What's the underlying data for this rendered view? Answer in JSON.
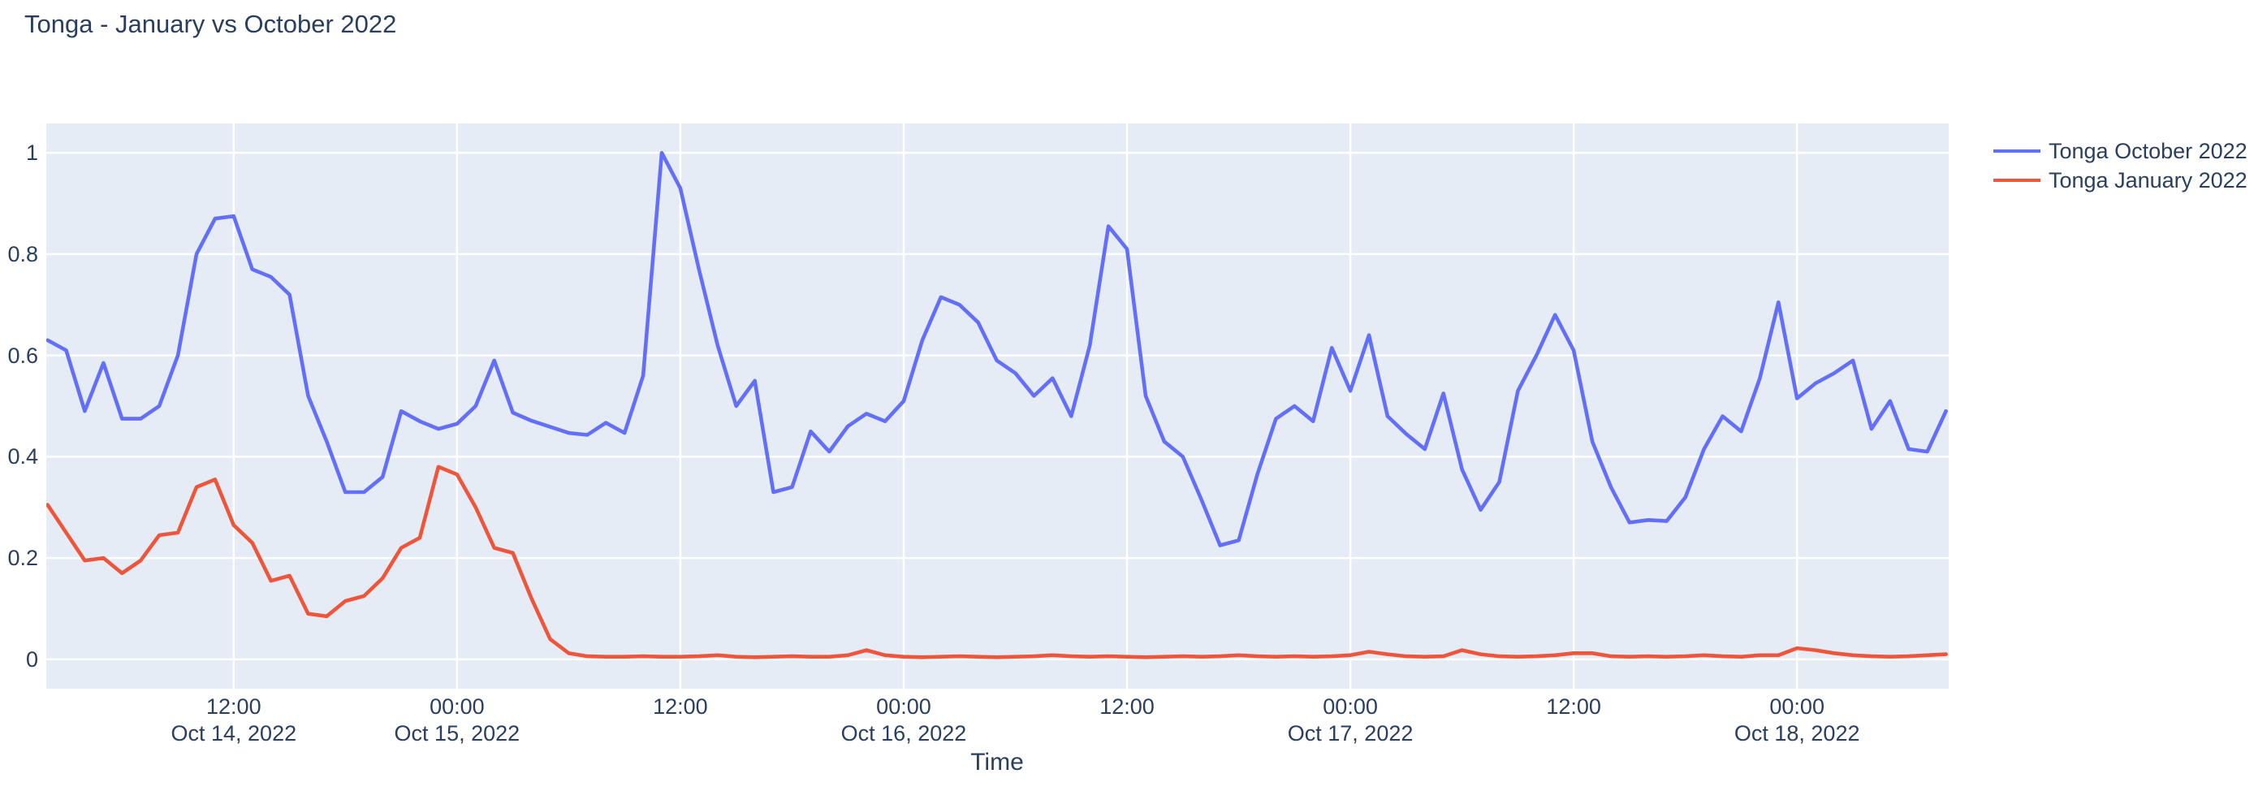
{
  "title": "Tonga - January vs October 2022",
  "colors": {
    "accent_blue": "#636efa",
    "accent_red": "#ef553b",
    "plot_background": "#e5ecf6",
    "grid": "#ffffff",
    "text": "#2a3f5f"
  },
  "legend": {
    "items": [
      {
        "label": "Tonga October 2022",
        "color": "#636efa"
      },
      {
        "label": "Tonga January 2022",
        "color": "#ef553b"
      }
    ]
  },
  "chart_data": {
    "type": "line",
    "title": "Tonga - January vs October 2022",
    "xlabel": "Time",
    "ylabel": "",
    "grid": true,
    "legend_position": "top-right",
    "x_domain_hours": [
      1.93,
      104.15
    ],
    "y_domain": [
      -0.058,
      1.058
    ],
    "x_epoch": "hours since Oct 14, 2022 00:00",
    "x_ticks": [
      {
        "hour": 12,
        "time": "12:00",
        "date": "Oct 14, 2022"
      },
      {
        "hour": 24,
        "time": "00:00",
        "date": "Oct 15, 2022"
      },
      {
        "hour": 36,
        "time": "12:00",
        "date": ""
      },
      {
        "hour": 48,
        "time": "00:00",
        "date": "Oct 16, 2022"
      },
      {
        "hour": 60,
        "time": "12:00",
        "date": ""
      },
      {
        "hour": 72,
        "time": "00:00",
        "date": "Oct 17, 2022"
      },
      {
        "hour": 84,
        "time": "12:00",
        "date": ""
      },
      {
        "hour": 96,
        "time": "00:00",
        "date": "Oct 18, 2022"
      }
    ],
    "y_ticks": [
      {
        "value": 0,
        "label": "0"
      },
      {
        "value": 0.2,
        "label": "0.2"
      },
      {
        "value": 0.4,
        "label": "0.4"
      },
      {
        "value": 0.6,
        "label": "0.6"
      },
      {
        "value": 0.8,
        "label": "0.8"
      },
      {
        "value": 1,
        "label": "1"
      }
    ],
    "series": [
      {
        "name": "Tonga October 2022",
        "color": "#636efa",
        "start_hour": 2,
        "step_hours": 1,
        "values": [
          0.63,
          0.61,
          0.49,
          0.585,
          0.475,
          0.475,
          0.5,
          0.6,
          0.8,
          0.87,
          0.875,
          0.77,
          0.755,
          0.72,
          0.52,
          0.43,
          0.33,
          0.33,
          0.36,
          0.49,
          0.47,
          0.455,
          0.465,
          0.5,
          0.59,
          0.487,
          0.471,
          0.459,
          0.447,
          0.443,
          0.467,
          0.447,
          0.56,
          1.0,
          0.93,
          0.77,
          0.62,
          0.5,
          0.55,
          0.33,
          0.34,
          0.45,
          0.41,
          0.46,
          0.485,
          0.47,
          0.51,
          0.63,
          0.715,
          0.7,
          0.665,
          0.59,
          0.565,
          0.52,
          0.555,
          0.48,
          0.62,
          0.855,
          0.81,
          0.52,
          0.43,
          0.4,
          0.315,
          0.225,
          0.235,
          0.365,
          0.475,
          0.5,
          0.47,
          0.615,
          0.53,
          0.64,
          0.48,
          0.445,
          0.415,
          0.525,
          0.375,
          0.295,
          0.35,
          0.53,
          0.6,
          0.68,
          0.61,
          0.43,
          0.34,
          0.27,
          0.275,
          0.273,
          0.32,
          0.415,
          0.48,
          0.45,
          0.555,
          0.705,
          0.515,
          0.545,
          0.565,
          0.59,
          0.455,
          0.51,
          0.415,
          0.41,
          0.49
        ]
      },
      {
        "name": "Tonga January 2022",
        "color": "#ef553b",
        "start_hour": 2,
        "step_hours": 1,
        "values": [
          0.305,
          0.25,
          0.195,
          0.2,
          0.17,
          0.195,
          0.245,
          0.25,
          0.34,
          0.355,
          0.265,
          0.23,
          0.155,
          0.165,
          0.09,
          0.085,
          0.115,
          0.125,
          0.16,
          0.22,
          0.24,
          0.38,
          0.365,
          0.3,
          0.22,
          0.21,
          0.12,
          0.04,
          0.012,
          0.006,
          0.005,
          0.005,
          0.006,
          0.005,
          0.005,
          0.006,
          0.008,
          0.005,
          0.004,
          0.005,
          0.006,
          0.005,
          0.005,
          0.008,
          0.018,
          0.008,
          0.005,
          0.004,
          0.005,
          0.006,
          0.005,
          0.004,
          0.005,
          0.006,
          0.008,
          0.006,
          0.005,
          0.006,
          0.005,
          0.004,
          0.005,
          0.006,
          0.005,
          0.006,
          0.008,
          0.006,
          0.005,
          0.006,
          0.005,
          0.006,
          0.008,
          0.015,
          0.01,
          0.006,
          0.005,
          0.006,
          0.018,
          0.01,
          0.006,
          0.005,
          0.006,
          0.008,
          0.012,
          0.012,
          0.006,
          0.005,
          0.006,
          0.005,
          0.006,
          0.008,
          0.006,
          0.005,
          0.008,
          0.008,
          0.022,
          0.018,
          0.012,
          0.008,
          0.006,
          0.005,
          0.006,
          0.008,
          0.01
        ]
      }
    ]
  }
}
